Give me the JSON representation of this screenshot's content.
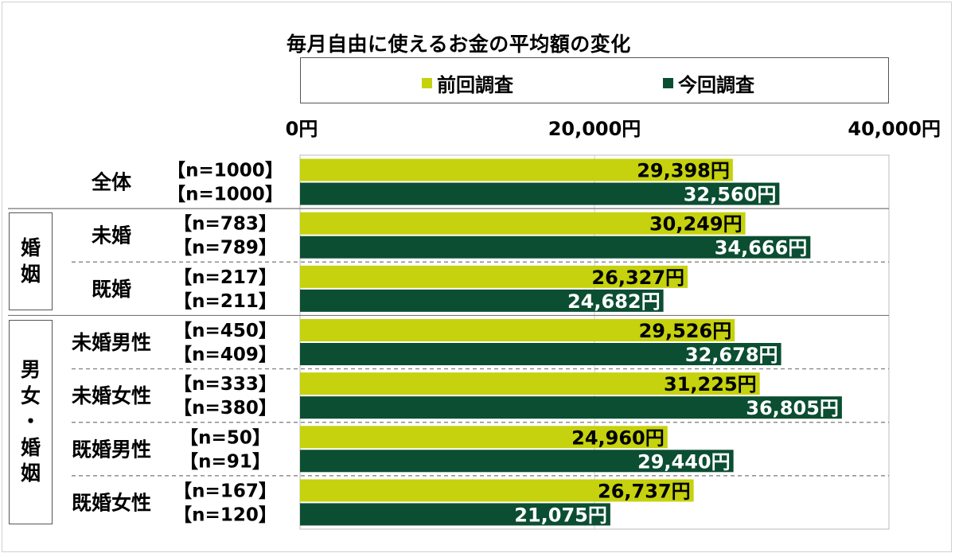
{
  "colors": {
    "previous": "#c5d20d",
    "current": "#0b4e32",
    "frame": "#555555",
    "grid": "#999999"
  },
  "chart_data": {
    "type": "bar",
    "orientation": "horizontal",
    "title": "毎月自由に使えるお金の平均額の変化",
    "legend": {
      "position": "top",
      "entries": [
        "前回調査",
        "今回調査"
      ]
    },
    "x_axis": {
      "ticks": [
        "0円",
        "20,000円",
        "40,000円"
      ],
      "range": [
        0,
        40000
      ]
    },
    "unit": "円",
    "groups": [
      {
        "label": "",
        "chars": []
      },
      {
        "label": "婚姻",
        "chars": [
          "婚",
          "姻"
        ]
      },
      {
        "label": "男女・婚姻",
        "chars": [
          "男",
          "女",
          "・",
          "婚",
          "姻"
        ]
      }
    ],
    "categories": [
      {
        "label": "全体",
        "group": 0,
        "n": [
          "【n=1000】",
          "【n=1000】"
        ],
        "values": [
          29398,
          32560
        ],
        "value_labels": [
          "29,398円",
          "32,560円"
        ]
      },
      {
        "label": "未婚",
        "group": 1,
        "n": [
          "【n=783】",
          "【n=789】"
        ],
        "values": [
          30249,
          34666
        ],
        "value_labels": [
          "30,249円",
          "34,666円"
        ]
      },
      {
        "label": "既婚",
        "group": 1,
        "n": [
          "【n=217】",
          "【n=211】"
        ],
        "values": [
          26327,
          24682
        ],
        "value_labels": [
          "26,327円",
          "24,682円"
        ]
      },
      {
        "label": "未婚男性",
        "group": 2,
        "n": [
          "【n=450】",
          "【n=409】"
        ],
        "values": [
          29526,
          32678
        ],
        "value_labels": [
          "29,526円",
          "32,678円"
        ]
      },
      {
        "label": "未婚女性",
        "group": 2,
        "n": [
          "【n=333】",
          "【n=380】"
        ],
        "values": [
          31225,
          36805
        ],
        "value_labels": [
          "31,225円",
          "36,805円"
        ]
      },
      {
        "label": "既婚男性",
        "group": 2,
        "n": [
          "【n=50】",
          "【n=91】"
        ],
        "values": [
          24960,
          29440
        ],
        "value_labels": [
          "24,960円",
          "29,440円"
        ]
      },
      {
        "label": "既婚女性",
        "group": 2,
        "n": [
          "【n=167】",
          "【n=120】"
        ],
        "values": [
          26737,
          21075
        ],
        "value_labels": [
          "26,737円",
          "21,075円"
        ]
      }
    ],
    "series": [
      {
        "name": "前回調査",
        "color_key": "previous"
      },
      {
        "name": "今回調査",
        "color_key": "current"
      }
    ]
  }
}
